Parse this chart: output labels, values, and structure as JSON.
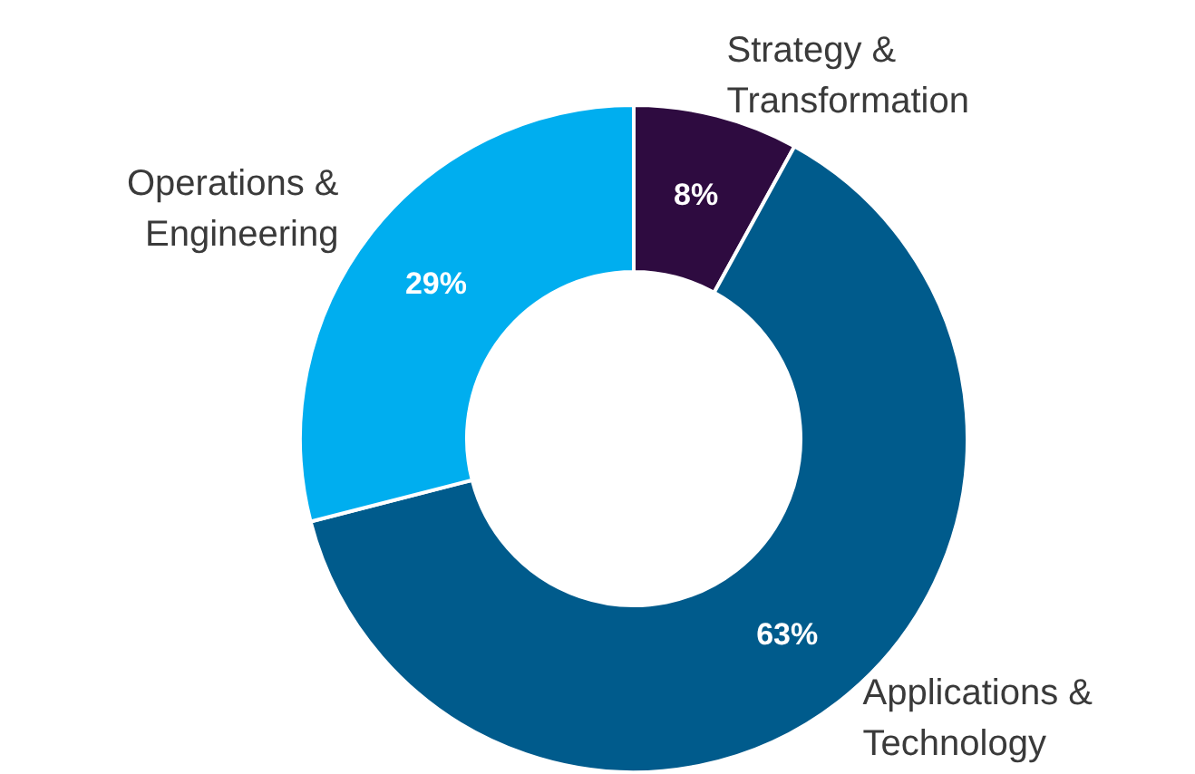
{
  "chart_data": {
    "type": "donut",
    "categories": [
      "Strategy & Transformation",
      "Applications & Technology",
      "Operations & Engineering"
    ],
    "values": [
      8,
      63,
      29
    ],
    "colors": [
      "#2e0b40",
      "#005b8c",
      "#00aeef"
    ],
    "value_labels": [
      "8%",
      "63%",
      "29%"
    ],
    "legend": false
  }
}
